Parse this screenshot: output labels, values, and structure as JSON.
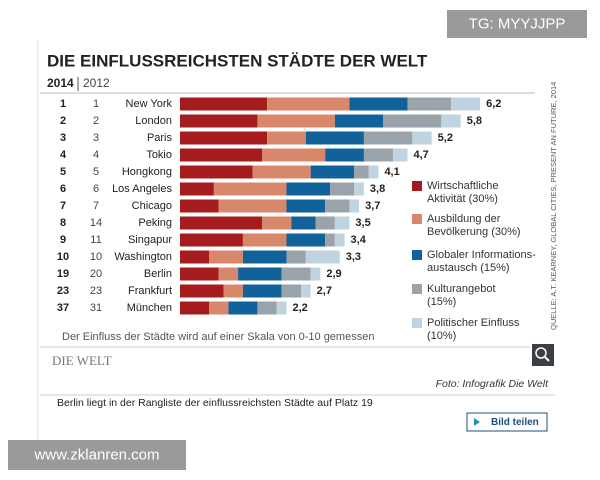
{
  "chart_data": {
    "type": "stacked-bar-horizontal",
    "title": "DIE EINFLUSSREICHSTEN STÄDTE DER WELT",
    "rank_headers": [
      "2014",
      "2012"
    ],
    "rank_2014": [
      1,
      2,
      3,
      4,
      5,
      6,
      7,
      8,
      9,
      10,
      19,
      23,
      37
    ],
    "rank_2012": [
      1,
      2,
      3,
      4,
      5,
      6,
      7,
      14,
      11,
      10,
      20,
      23,
      31
    ],
    "categories": [
      "New York",
      "London",
      "Paris",
      "Tokio",
      "Hongkong",
      "Los Angeles",
      "Chicago",
      "Peking",
      "Singapur",
      "Washington",
      "Berlin",
      "Frankfurt",
      "München"
    ],
    "series": [
      {
        "name": "Wirtschaftliche\nAktivität (30%)",
        "color": "#a51c1f",
        "values": [
          1.8,
          1.6,
          1.8,
          1.7,
          1.5,
          0.7,
          0.8,
          1.7,
          1.3,
          0.6,
          0.8,
          0.9,
          0.6
        ]
      },
      {
        "name": "Ausbildung der\nBevölkerung (30%)",
        "color": "#d9876a",
        "values": [
          1.7,
          1.6,
          0.8,
          1.3,
          1.2,
          1.5,
          1.4,
          0.6,
          0.9,
          0.7,
          0.4,
          0.4,
          0.4
        ]
      },
      {
        "name": "Globaler Informations-\naustausch (15%)",
        "color": "#11629b",
        "values": [
          1.2,
          1.0,
          1.2,
          0.8,
          0.9,
          0.9,
          0.8,
          0.5,
          0.8,
          0.9,
          0.9,
          0.8,
          0.6
        ]
      },
      {
        "name": "Kulturangebot\n(15%)",
        "color": "#9aa3aa",
        "values": [
          0.9,
          1.2,
          1.0,
          0.6,
          0.3,
          0.5,
          0.5,
          0.4,
          0.2,
          0.4,
          0.6,
          0.4,
          0.4
        ]
      },
      {
        "name": "Politischer Einfluss\n(10%)",
        "color": "#bfd4e0",
        "values": [
          0.6,
          0.4,
          0.4,
          0.3,
          0.2,
          0.2,
          0.2,
          0.3,
          0.2,
          0.7,
          0.2,
          0.2,
          0.2
        ]
      }
    ],
    "totals": [
      6.2,
      5.8,
      5.2,
      4.7,
      4.1,
      3.8,
      3.7,
      3.5,
      3.4,
      3.3,
      2.9,
      2.7,
      2.2
    ],
    "total_labels": [
      "6,2",
      "5,8",
      "5,2",
      "4,7",
      "4,1",
      "3,8",
      "3,7",
      "3,5",
      "3,4",
      "3,3",
      "2,9",
      "2,7",
      "2,2"
    ],
    "source": "QUELLE: A.T. KEARNEY, GLOBAL CITIES, PRESENT AN FUTURE, 2014",
    "footnote": "Der Einfluss der Städte wird auf einer Skala von 0-10 gemessen"
  },
  "page": {
    "logo": "DIE WELT",
    "credit": "Foto: Infografik Die Welt",
    "caption": "Berlin liegt in der Rangliste der einflussreichsten Städte auf Platz 19",
    "share_button": "Bild teilen",
    "watermark_top": "TG: MYYJJPP",
    "watermark_bottom": "www.zklanren.com"
  }
}
